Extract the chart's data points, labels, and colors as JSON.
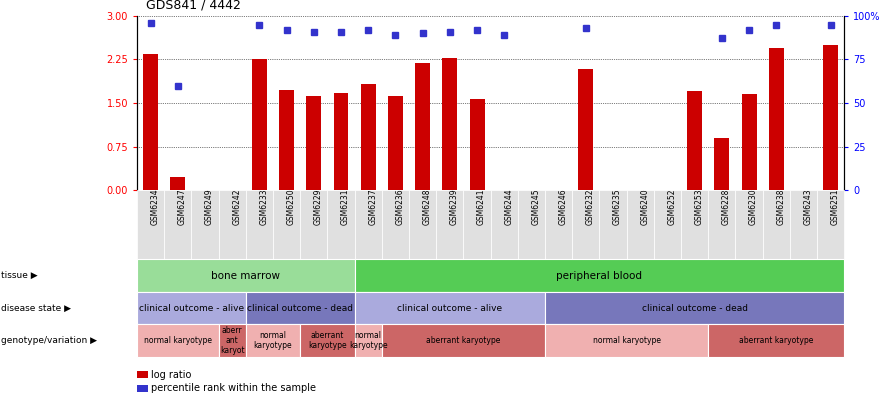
{
  "title": "GDS841 / 4442",
  "samples": [
    "GSM6234",
    "GSM6247",
    "GSM6249",
    "GSM6242",
    "GSM6233",
    "GSM6250",
    "GSM6229",
    "GSM6231",
    "GSM6237",
    "GSM6236",
    "GSM6248",
    "GSM6239",
    "GSM6241",
    "GSM6244",
    "GSM6245",
    "GSM6246",
    "GSM6232",
    "GSM6235",
    "GSM6240",
    "GSM6252",
    "GSM6253",
    "GSM6228",
    "GSM6230",
    "GSM6238",
    "GSM6243",
    "GSM6251"
  ],
  "log_ratio": [
    2.35,
    0.22,
    0.0,
    0.0,
    2.25,
    1.72,
    1.62,
    1.68,
    1.82,
    1.62,
    2.18,
    2.27,
    1.57,
    0.0,
    0.0,
    0.0,
    2.08,
    0.0,
    0.0,
    0.0,
    1.7,
    0.9,
    1.65,
    2.45,
    0.0,
    2.5
  ],
  "percentile_raw": [
    96,
    60,
    0,
    0,
    95,
    92,
    91,
    91,
    92,
    89,
    90,
    91,
    92,
    89,
    0,
    0,
    93,
    0,
    0,
    0,
    0,
    87,
    92,
    95,
    0,
    95
  ],
  "ylim_left": [
    0,
    3
  ],
  "ylim_right": [
    0,
    100
  ],
  "yticks_left": [
    0,
    0.75,
    1.5,
    2.25,
    3.0
  ],
  "yticks_right": [
    0,
    25,
    50,
    75,
    100
  ],
  "bar_color": "#cc0000",
  "dot_color": "#3333cc",
  "tissue_groups": [
    {
      "label": "bone marrow",
      "start": 0,
      "end": 8,
      "color": "#99dd99"
    },
    {
      "label": "peripheral blood",
      "start": 8,
      "end": 26,
      "color": "#55cc55"
    }
  ],
  "disease_groups": [
    {
      "label": "clinical outcome - alive",
      "start": 0,
      "end": 4,
      "color": "#aaaadd"
    },
    {
      "label": "clinical outcome - dead",
      "start": 4,
      "end": 8,
      "color": "#7777bb"
    },
    {
      "label": "clinical outcome - alive",
      "start": 8,
      "end": 15,
      "color": "#aaaadd"
    },
    {
      "label": "clinical outcome - dead",
      "start": 15,
      "end": 26,
      "color": "#7777bb"
    }
  ],
  "geno_groups": [
    {
      "label": "normal karyotype",
      "start": 0,
      "end": 3,
      "color": "#f0b0b0"
    },
    {
      "label": "aberr\nant\nkaryot",
      "start": 3,
      "end": 4,
      "color": "#cc6666"
    },
    {
      "label": "normal\nkaryotype",
      "start": 4,
      "end": 6,
      "color": "#f0b0b0"
    },
    {
      "label": "aberrant\nkaryotype",
      "start": 6,
      "end": 8,
      "color": "#cc6666"
    },
    {
      "label": "normal\nkaryotype",
      "start": 8,
      "end": 9,
      "color": "#f0b0b0"
    },
    {
      "label": "aberrant karyotype",
      "start": 9,
      "end": 15,
      "color": "#cc6666"
    },
    {
      "label": "normal karyotype",
      "start": 15,
      "end": 21,
      "color": "#f0b0b0"
    },
    {
      "label": "aberrant karyotype",
      "start": 21,
      "end": 26,
      "color": "#cc6666"
    }
  ],
  "row_labels": [
    "tissue",
    "disease state",
    "genotype/variation"
  ],
  "legend_items": [
    {
      "label": "log ratio",
      "color": "#cc0000"
    },
    {
      "label": "percentile rank within the sample",
      "color": "#3333cc"
    }
  ]
}
